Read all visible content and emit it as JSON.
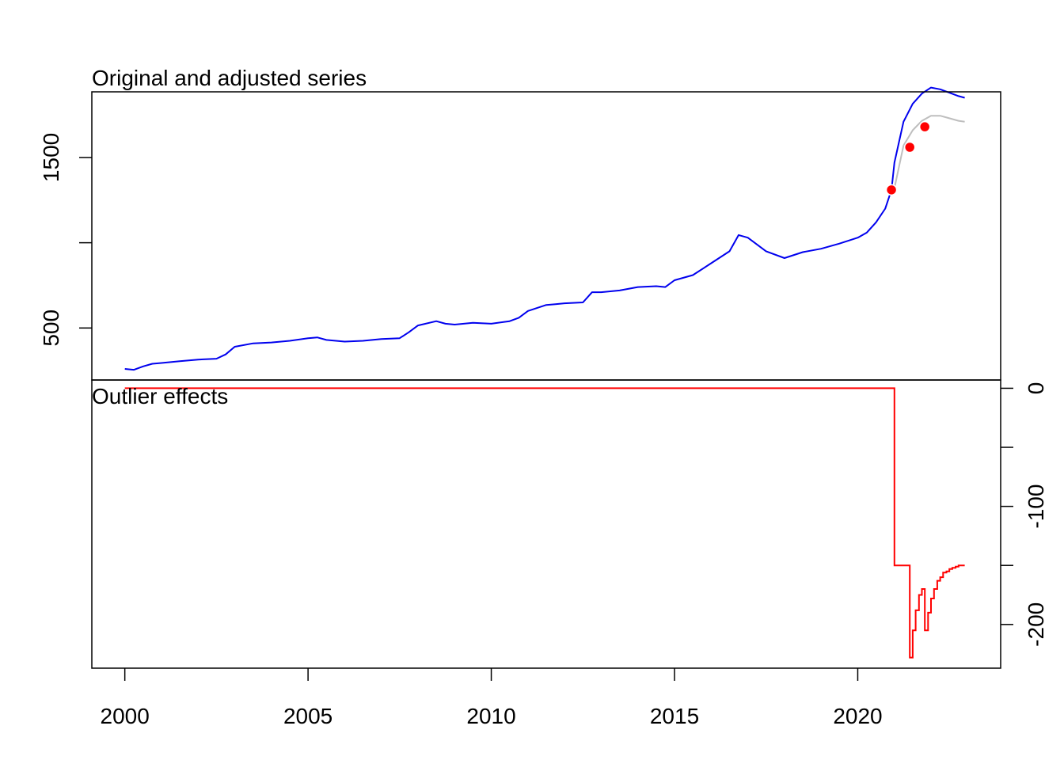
{
  "chart_data": [
    {
      "panel": "top",
      "type": "line",
      "title": "Original and adjusted series",
      "xlabel": "",
      "ylabel": "",
      "xlim": [
        1999.1,
        2023.9
      ],
      "ylim": [
        195,
        1885
      ],
      "y_ticks": [
        500,
        1000,
        1500
      ],
      "y_tick_labels": [
        "500",
        "",
        "1500"
      ],
      "grid": false,
      "colors": {
        "original": "#0000ee",
        "adjusted": "#bebebe",
        "outlier": "#ff0000"
      },
      "series": [
        {
          "role": "original",
          "x": [
            2000.0,
            2000.25,
            2000.5,
            2000.75,
            2001.0,
            2001.5,
            2002.0,
            2002.5,
            2002.75,
            2003.0,
            2003.5,
            2004.0,
            2004.5,
            2005.0,
            2005.25,
            2005.5,
            2006.0,
            2006.5,
            2007.0,
            2007.5,
            2007.75,
            2008.0,
            2008.5,
            2008.75,
            2009.0,
            2009.5,
            2010.0,
            2010.5,
            2010.75,
            2011.0,
            2011.5,
            2011.75,
            2012.0,
            2012.5,
            2012.75,
            2013.0,
            2013.5,
            2014.0,
            2014.5,
            2014.75,
            2015.0,
            2015.5,
            2016.0,
            2016.5,
            2016.75,
            2017.0,
            2017.5,
            2018.0,
            2018.5,
            2019.0,
            2019.5,
            2020.0,
            2020.25,
            2020.5,
            2020.75,
            2020.92,
            2021.0,
            2021.25,
            2021.5,
            2021.75,
            2022.0,
            2022.25,
            2022.5,
            2022.75,
            2022.92
          ],
          "y": [
            260,
            255,
            275,
            290,
            295,
            305,
            315,
            320,
            345,
            390,
            410,
            415,
            425,
            440,
            445,
            430,
            420,
            425,
            435,
            440,
            475,
            515,
            540,
            525,
            520,
            530,
            525,
            540,
            560,
            600,
            635,
            640,
            645,
            650,
            710,
            710,
            720,
            740,
            745,
            740,
            780,
            810,
            880,
            950,
            1045,
            1030,
            950,
            910,
            945,
            965,
            995,
            1030,
            1060,
            1120,
            1200,
            1310,
            1470,
            1710,
            1815,
            1875,
            1910,
            1900,
            1880,
            1860,
            1850
          ]
        },
        {
          "role": "adjusted",
          "x": [
            2020.92,
            2021.0,
            2021.25,
            2021.5,
            2021.75,
            2022.0,
            2022.25,
            2022.5,
            2022.75,
            2022.92
          ],
          "y": [
            1310,
            1320,
            1570,
            1660,
            1715,
            1745,
            1745,
            1730,
            1715,
            1710
          ]
        }
      ],
      "outliers": {
        "x": [
          2020.92,
          2021.42,
          2021.83
        ],
        "y": [
          1310,
          1560,
          1680
        ]
      }
    },
    {
      "panel": "bottom",
      "type": "line",
      "title": "Outlier effects",
      "xlabel": "",
      "ylabel": "",
      "xlim": [
        1999.1,
        2023.9
      ],
      "ylim": [
        -237,
        7
      ],
      "x_ticks": [
        2000,
        2005,
        2010,
        2015,
        2020
      ],
      "x_tick_labels": [
        "2000",
        "2005",
        "2010",
        "2015",
        "2020"
      ],
      "y_ticks": [
        0,
        -50,
        -100,
        -150,
        -200
      ],
      "y_tick_labels": [
        "0",
        "",
        "-100",
        "",
        "-200"
      ],
      "grid": false,
      "colors": {
        "effect": "#ff0000"
      },
      "series": [
        {
          "role": "effect",
          "step": true,
          "x": [
            2000.0,
            2020.92,
            2021.0,
            2021.42,
            2021.5,
            2021.58,
            2021.67,
            2021.75,
            2021.83,
            2021.92,
            2022.0,
            2022.08,
            2022.17,
            2022.25,
            2022.33,
            2022.42,
            2022.5,
            2022.58,
            2022.67,
            2022.75,
            2022.83,
            2022.92
          ],
          "y": [
            0,
            0,
            -150,
            -228,
            -205,
            -188,
            -175,
            -170,
            -205,
            -190,
            -178,
            -170,
            -163,
            -160,
            -156,
            -155,
            -153,
            -152,
            -151,
            -150,
            -150,
            -150
          ]
        }
      ]
    }
  ]
}
